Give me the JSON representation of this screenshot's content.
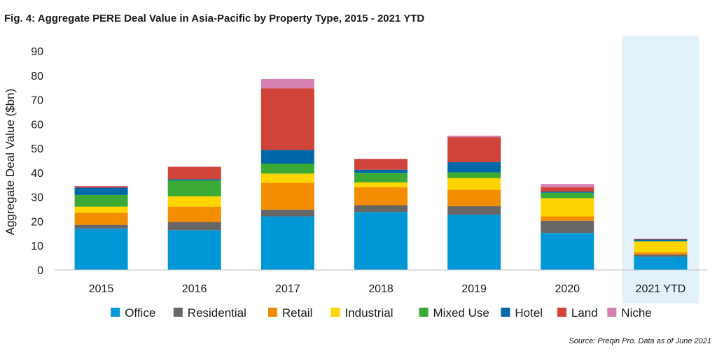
{
  "figure": {
    "title": "Fig. 4: Aggregate PERE Deal Value in Asia-Pacific by Property Type, 2015 - 2021 YTD",
    "source": "Source: Preqin Pro. Data as of June 2021"
  },
  "chart_data": {
    "type": "bar",
    "stacked": true,
    "title": "Fig. 4: Aggregate PERE Deal Value in Asia-Pacific by Property Type, 2015 - 2021 YTD",
    "xlabel": "",
    "ylabel": "Aggregate Deal Value ($bn)",
    "ylim": [
      0,
      90
    ],
    "yticks": [
      0,
      10,
      20,
      30,
      40,
      50,
      60,
      70,
      80,
      90
    ],
    "grid": false,
    "legend_position": "bottom",
    "highlighted_category": "2021 YTD",
    "highlight_color": "#e3f1fa",
    "categories": [
      "2015",
      "2016",
      "2017",
      "2018",
      "2019",
      "2020",
      "2021 YTD"
    ],
    "series": [
      {
        "name": "Office",
        "color": "#0097d6",
        "values": [
          17.0,
          16.3,
          22.0,
          23.8,
          22.7,
          15.2,
          5.5
        ]
      },
      {
        "name": "Residential",
        "color": "#676767",
        "values": [
          1.5,
          3.4,
          2.8,
          2.8,
          3.5,
          5.0,
          0.8
        ]
      },
      {
        "name": "Retail",
        "color": "#f28c00",
        "values": [
          5.0,
          6.3,
          11.0,
          7.4,
          6.8,
          1.8,
          0.9
        ]
      },
      {
        "name": "Industrial",
        "color": "#ffd500",
        "values": [
          2.5,
          4.3,
          3.8,
          2.0,
          4.8,
          7.5,
          4.5
        ]
      },
      {
        "name": "Mixed Use",
        "color": "#3aaa35",
        "values": [
          4.8,
          6.5,
          4.1,
          3.9,
          2.3,
          2.2,
          0.1
        ]
      },
      {
        "name": "Hotel",
        "color": "#0068a8",
        "values": [
          3.0,
          0.5,
          5.6,
          1.3,
          4.2,
          0.5,
          0.7
        ]
      },
      {
        "name": "Land",
        "color": "#d04338",
        "values": [
          0.6,
          5.0,
          25.4,
          4.4,
          10.3,
          1.8,
          0.2
        ]
      },
      {
        "name": "Niche",
        "color": "#d580b0",
        "values": [
          0.1,
          0.2,
          3.8,
          0.1,
          0.6,
          1.3,
          0.1
        ]
      }
    ]
  }
}
